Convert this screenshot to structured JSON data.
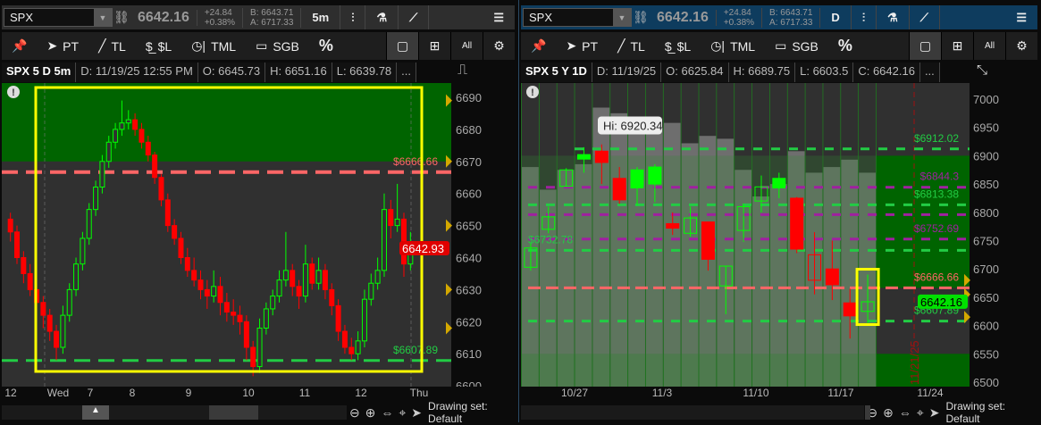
{
  "left": {
    "symbol": "SPX",
    "last": "6642.16",
    "change": "+24.84",
    "change_pct": "+0.38%",
    "bid": "B: 6643.71",
    "ask": "A: 6717.33",
    "aggregation": "5m",
    "toolbar": [
      "PT",
      "TL",
      "$L",
      "TML",
      "SGB",
      "%",
      "All"
    ],
    "info": {
      "title": "SPX 5 D 5m",
      "date": "D: 11/19/25 12:55 PM",
      "open": "O: 6645.73",
      "high": "H: 6651.16",
      "low": "L: 6639.78",
      "more": "..."
    },
    "footer": "Drawing set: Default"
  },
  "right": {
    "symbol": "SPX",
    "last": "6642.16",
    "change": "+24.84",
    "change_pct": "+0.38%",
    "bid": "B: 6643.71",
    "ask": "A: 6717.33",
    "aggregation": "D",
    "toolbar": [
      "PT",
      "TL",
      "$L",
      "TML",
      "SGB",
      "%",
      "All"
    ],
    "info": {
      "title": "SPX 5 Y 1D",
      "date": "D: 11/19/25",
      "open": "O: 6625.84",
      "high": "H: 6689.75",
      "low": "L: 6603.5",
      "close": "C: 6642.16",
      "more": "..."
    },
    "footer": "Drawing set: Default"
  },
  "colors": {
    "up": "#00ff00",
    "down": "#ff0000",
    "zone": "#006400",
    "resistance": "#ff6666",
    "support": "#22cc44",
    "purple": "#a020a0",
    "highlight": "#ffff00",
    "right_header": "#0e3c5e"
  },
  "chart_data": [
    {
      "type": "candlestick",
      "name_shown": "SPX 5 D 5m",
      "ylim": [
        6600,
        6692
      ],
      "yticks": [
        "6690",
        "6680",
        "6670",
        "6660",
        "6650",
        "6640",
        "6630",
        "6620",
        "6610",
        "6600"
      ],
      "xticks": [
        "12",
        "Wed",
        "7",
        "8",
        "9",
        "10",
        "11",
        "12",
        "Thu"
      ],
      "price_label": "6642.93",
      "levels": [
        {
          "label": "$6666.66",
          "value": 6666.66,
          "color": "#ff6666"
        },
        {
          "label": "$6607.89",
          "value": 6607.89,
          "color": "#22cc44"
        }
      ],
      "zone": {
        "from": 6670,
        "to": 6692
      },
      "candles": [
        [
          6652,
          6654,
          6645,
          6648
        ],
        [
          6648,
          6650,
          6638,
          6640
        ],
        [
          6640,
          6642,
          6632,
          6635
        ],
        [
          6635,
          6638,
          6628,
          6630
        ],
        [
          6630,
          6632,
          6622,
          6626
        ],
        [
          6626,
          6628,
          6618,
          6622
        ],
        [
          6622,
          6624,
          6614,
          6617
        ],
        [
          6617,
          6619,
          6608,
          6612
        ],
        [
          6612,
          6625,
          6610,
          6622
        ],
        [
          6622,
          6632,
          6620,
          6630
        ],
        [
          6630,
          6640,
          6628,
          6638
        ],
        [
          6638,
          6648,
          6636,
          6646
        ],
        [
          6646,
          6657,
          6644,
          6655
        ],
        [
          6655,
          6664,
          6653,
          6662
        ],
        [
          6662,
          6672,
          6660,
          6670
        ],
        [
          6670,
          6678,
          6668,
          6676
        ],
        [
          6676,
          6682,
          6674,
          6680
        ],
        [
          6680,
          6689,
          6678,
          6682
        ],
        [
          6682,
          6686,
          6680,
          6683
        ],
        [
          6683,
          6685,
          6678,
          6680
        ],
        [
          6680,
          6682,
          6674,
          6676
        ],
        [
          6676,
          6678,
          6670,
          6672
        ],
        [
          6672,
          6673,
          6663,
          6665
        ],
        [
          6665,
          6666,
          6656,
          6658
        ],
        [
          6658,
          6660,
          6648,
          6650
        ],
        [
          6650,
          6652,
          6644,
          6646
        ],
        [
          6646,
          6648,
          6638,
          6640
        ],
        [
          6640,
          6643,
          6634,
          6636
        ],
        [
          6636,
          6640,
          6631,
          6633
        ],
        [
          6633,
          6636,
          6627,
          6630
        ],
        [
          6630,
          6633,
          6624,
          6628
        ],
        [
          6628,
          6636,
          6626,
          6631
        ],
        [
          6631,
          6634,
          6622,
          6626
        ],
        [
          6626,
          6629,
          6620,
          6623
        ],
        [
          6623,
          6627,
          6619,
          6622
        ],
        [
          6622,
          6625,
          6616,
          6620
        ],
        [
          6620,
          6622,
          6608,
          6612
        ],
        [
          6612,
          6614,
          6603,
          6606
        ],
        [
          6606,
          6621,
          6604,
          6618
        ],
        [
          6618,
          6626,
          6616,
          6624
        ],
        [
          6624,
          6630,
          6622,
          6628
        ],
        [
          6628,
          6636,
          6626,
          6633
        ],
        [
          6633,
          6648,
          6631,
          6636
        ],
        [
          6636,
          6638,
          6628,
          6631
        ],
        [
          6631,
          6633,
          6624,
          6628
        ],
        [
          6628,
          6644,
          6626,
          6638
        ],
        [
          6638,
          6640,
          6630,
          6632
        ],
        [
          6632,
          6640,
          6630,
          6636
        ],
        [
          6636,
          6638,
          6627,
          6630
        ],
        [
          6630,
          6632,
          6622,
          6625
        ],
        [
          6625,
          6627,
          6614,
          6617
        ],
        [
          6617,
          6619,
          6610,
          6612
        ],
        [
          6612,
          6615,
          6608,
          6610
        ],
        [
          6610,
          6617,
          6608,
          6614
        ],
        [
          6614,
          6630,
          6612,
          6627
        ],
        [
          6627,
          6635,
          6625,
          6632
        ],
        [
          6632,
          6640,
          6630,
          6636
        ],
        [
          6636,
          6660,
          6634,
          6655
        ],
        [
          6655,
          6658,
          6646,
          6650
        ],
        [
          6650,
          6663,
          6648,
          6652
        ],
        [
          6652,
          6654,
          6634,
          6638
        ],
        [
          6638,
          6648,
          6636,
          6643
        ]
      ]
    },
    {
      "type": "candlestick",
      "name_shown": "SPX 5 Y 1D",
      "ylim": [
        6500,
        7025
      ],
      "yticks": [
        "7000",
        "6950",
        "6900",
        "6850",
        "6800",
        "6750",
        "6700",
        "6650",
        "6600",
        "6550",
        "6500"
      ],
      "xticks": [
        "10/27",
        "11/3",
        "11/10",
        "11/17",
        "11/24"
      ],
      "price_label": "6642.16",
      "tooltip": "Hi: 6920.34",
      "vertical_date": "11/21/25",
      "levels": [
        {
          "label": "$6912.02",
          "value": 6912.02,
          "color": "#22cc44"
        },
        {
          "label": "$6844.3",
          "value": 6844.3,
          "color": "#a020a0"
        },
        {
          "label": "$6813.38",
          "value": 6813.38,
          "color": "#22cc44"
        },
        {
          "label": "",
          "value": 6795.9,
          "color": "#a020a0"
        },
        {
          "label": "$6752.69",
          "value": 6752.69,
          "color": "#a020a0"
        },
        {
          "label": "$6732.78",
          "value": 6732.78,
          "color": "#22cc44"
        },
        {
          "label": "$6666.66",
          "value": 6666.66,
          "color": "#ff6666"
        },
        {
          "label": "$6607.89",
          "value": 6607.89,
          "color": "#22cc44"
        }
      ],
      "volume_profile_tops": [
        6880,
        6840,
        6875,
        6885,
        6985,
        6975,
        6960,
        6950,
        6958,
        6922,
        6935,
        6930,
        6875,
        6828,
        6850,
        6908,
        6870,
        6880,
        6893,
        6870
      ],
      "candles": [
        [
          6703,
          6745,
          6697,
          6737,
          "h"
        ],
        [
          6770,
          6810,
          6763,
          6792,
          "h"
        ],
        [
          6846,
          6878,
          6845,
          6875,
          "h"
        ],
        [
          6902,
          6915,
          6870,
          6894,
          "g"
        ],
        [
          6908,
          6920,
          6850,
          6888,
          "r"
        ],
        [
          6860,
          6880,
          6815,
          6822,
          "r"
        ],
        [
          6875,
          6880,
          6812,
          6843,
          "g"
        ],
        [
          6880,
          6885,
          6818,
          6850,
          "g"
        ],
        [
          6780,
          6800,
          6760,
          6772,
          "r"
        ],
        [
          6763,
          6810,
          6757,
          6790,
          "h"
        ],
        [
          6783,
          6783,
          6697,
          6717,
          "r"
        ],
        [
          6670,
          6705,
          6620,
          6705,
          "h"
        ],
        [
          6768,
          6815,
          6748,
          6810,
          "h"
        ],
        [
          6820,
          6865,
          6800,
          6845,
          "h"
        ],
        [
          6860,
          6870,
          6825,
          6843,
          "g"
        ],
        [
          6825,
          6827,
          6728,
          6735,
          "r"
        ],
        [
          6680,
          6765,
          6655,
          6725,
          "hr"
        ],
        [
          6700,
          6750,
          6645,
          6672,
          "r"
        ],
        [
          6640,
          6665,
          6577,
          6617,
          "r"
        ],
        [
          6625,
          6690,
          6604,
          6642,
          "h"
        ]
      ]
    }
  ]
}
